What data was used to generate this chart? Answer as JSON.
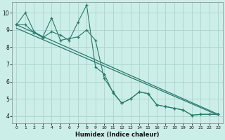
{
  "xlabel": "Humidex (Indice chaleur)",
  "bg_color": "#cceee8",
  "grid_color": "#aad4ce",
  "line_color": "#2a7a6a",
  "xlim": [
    -0.5,
    23.5
  ],
  "ylim": [
    3.6,
    10.6
  ],
  "xtick_labels": [
    "0",
    "1",
    "2",
    "3",
    "4",
    "5",
    "6",
    "7",
    "8",
    "9",
    "10",
    "11",
    "12",
    "13",
    "14",
    "15",
    "16",
    "17",
    "18",
    "19",
    "20",
    "21",
    "22",
    "23"
  ],
  "ytick_vals": [
    4,
    5,
    6,
    7,
    8,
    9,
    10
  ],
  "series1_x": [
    0,
    1,
    2,
    3,
    4,
    5,
    6,
    7,
    8,
    9,
    10,
    11,
    12,
    13,
    14,
    15,
    16,
    17,
    18,
    19,
    20,
    21,
    22,
    23
  ],
  "series1_y": [
    9.3,
    10.0,
    8.9,
    8.6,
    9.7,
    8.4,
    8.5,
    8.6,
    9.0,
    8.4,
    6.2,
    5.4,
    4.75,
    5.0,
    5.4,
    5.3,
    4.65,
    4.55,
    4.45,
    4.35,
    4.05,
    4.1,
    4.1,
    4.1
  ],
  "series2_x": [
    0,
    1,
    2,
    3,
    4,
    5,
    6,
    7,
    8,
    9,
    10,
    11,
    12,
    13,
    14,
    15,
    16,
    17,
    18,
    19,
    20,
    21,
    22,
    23
  ],
  "series2_y": [
    9.3,
    9.3,
    8.85,
    8.55,
    8.9,
    8.7,
    8.4,
    9.45,
    10.45,
    6.85,
    6.45,
    5.35,
    4.75,
    5.0,
    5.4,
    5.3,
    4.65,
    4.55,
    4.45,
    4.35,
    4.05,
    4.1,
    4.1,
    4.1
  ],
  "trend1_x": [
    0,
    23
  ],
  "trend1_y": [
    9.3,
    4.1
  ],
  "trend2_x": [
    0,
    23
  ],
  "trend2_y": [
    9.1,
    4.05
  ]
}
